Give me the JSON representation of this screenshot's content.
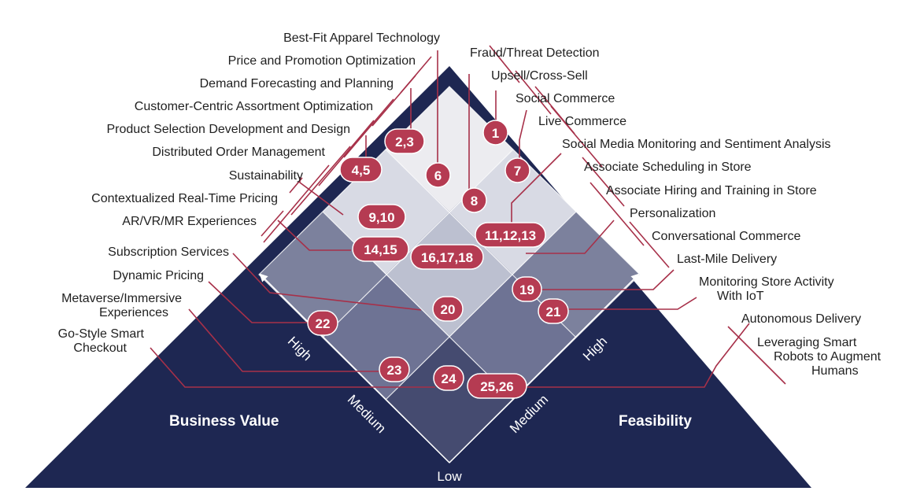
{
  "colors": {
    "pyramid": "#1e2752",
    "badge": "#b53b52",
    "leader": "#a73049",
    "cell_light": "#ececf0",
    "cell_mid": "#c5c8d6",
    "cell_dark": "#7c819d",
    "cell_darker": "#50567a"
  },
  "axes": {
    "business_value": "Business Value",
    "feasibility": "Feasibility",
    "low": "Low",
    "left_high": "High",
    "left_medium": "Medium",
    "right_high": "High",
    "right_medium": "Medium"
  },
  "labels": {
    "l1": "Best-Fit Apparel Technology",
    "l2": "Price and Promotion Optimization",
    "l3": "Demand Forecasting and Planning",
    "l4": "Customer-Centric Assortment Optimization",
    "l5": "Product Selection Development and Design",
    "l6": "Distributed Order Management",
    "l7": "Sustainability",
    "l8": "Contextualized Real-Time Pricing",
    "l9": "AR/VR/MR Experiences",
    "l10": "Subscription Services",
    "l11": "Dynamic Pricing",
    "l12a": "Metaverse/Immersive",
    "l12b": "Experiences",
    "l13a": "Go-Style Smart",
    "l13b": "Checkout",
    "r1": "Fraud/Threat Detection",
    "r2": "Upsell/Cross-Sell",
    "r3": "Social Commerce",
    "r4": "Live Commerce",
    "r5": "Social Media Monitoring and Sentiment Analysis",
    "r6": "Associate Scheduling in Store",
    "r7": "Associate Hiring and Training in Store",
    "r8": "Personalization",
    "r9": "Conversational Commerce",
    "r10": "Last-Mile Delivery",
    "r11a": "Monitoring Store Activity",
    "r11b": "With IoT",
    "r12": "Autonomous Delivery",
    "r13a": "Leveraging Smart",
    "r13b": "Robots to Augment",
    "r13c": "Humans"
  },
  "badges": {
    "b1": "1",
    "b23": "2,3",
    "b45": "4,5",
    "b6": "6",
    "b7": "7",
    "b8": "8",
    "b910": "9,10",
    "b111213": "11,12,13",
    "b1415": "14,15",
    "b161718": "16,17,18",
    "b19": "19",
    "b20": "20",
    "b21": "21",
    "b22": "22",
    "b23n": "23",
    "b24": "24",
    "b2526": "25,26"
  }
}
